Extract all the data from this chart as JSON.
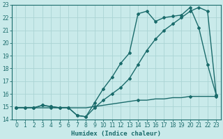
{
  "title": "",
  "xlabel": "Humidex (Indice chaleur)",
  "ylabel": "",
  "bg_color": "#c9eaea",
  "line_color": "#1a6b6b",
  "grid_color": "#aad4d4",
  "ylim": [
    14,
    23
  ],
  "xlim": [
    -0.5,
    23.5
  ],
  "yticks": [
    14,
    15,
    16,
    17,
    18,
    19,
    20,
    21,
    22,
    23
  ],
  "xticks": [
    0,
    1,
    2,
    3,
    4,
    5,
    6,
    7,
    8,
    9,
    10,
    11,
    12,
    13,
    14,
    15,
    16,
    17,
    18,
    19,
    20,
    21,
    22,
    23
  ],
  "line1_x": [
    0,
    1,
    2,
    3,
    4,
    5,
    6,
    7,
    8,
    9,
    10,
    11,
    12,
    13,
    14,
    15,
    16,
    17,
    18,
    19,
    20,
    21,
    22,
    23
  ],
  "line1_y": [
    14.9,
    14.9,
    14.9,
    14.9,
    14.9,
    14.9,
    14.9,
    14.9,
    14.9,
    15.0,
    15.1,
    15.2,
    15.3,
    15.4,
    15.5,
    15.5,
    15.6,
    15.6,
    15.7,
    15.7,
    15.8,
    15.8,
    15.8,
    15.8
  ],
  "line2_x": [
    0,
    1,
    2,
    3,
    4,
    5,
    6,
    7,
    8,
    9,
    10,
    11,
    12,
    13,
    14,
    15,
    16,
    17,
    18,
    19,
    20,
    21,
    22,
    23
  ],
  "line2_y": [
    14.9,
    14.9,
    14.9,
    15.1,
    15.0,
    14.9,
    14.9,
    14.3,
    14.2,
    14.9,
    15.5,
    16.0,
    16.5,
    17.2,
    18.3,
    19.4,
    20.3,
    21.0,
    21.5,
    22.0,
    22.5,
    22.8,
    22.5,
    15.9
  ],
  "line3_x": [
    0,
    1,
    2,
    3,
    4,
    5,
    6,
    7,
    8,
    9,
    10,
    11,
    12,
    13,
    14,
    15,
    16,
    17,
    18,
    19,
    20,
    21,
    22,
    23
  ],
  "line3_y": [
    14.9,
    14.9,
    14.9,
    15.1,
    15.0,
    14.9,
    14.9,
    14.3,
    14.2,
    15.3,
    16.4,
    17.3,
    18.4,
    19.2,
    22.3,
    22.5,
    21.7,
    22.0,
    22.1,
    22.2,
    22.8,
    21.2,
    18.3,
    15.9
  ],
  "marker": "D",
  "markersize": 2.0,
  "linewidth": 1.0
}
